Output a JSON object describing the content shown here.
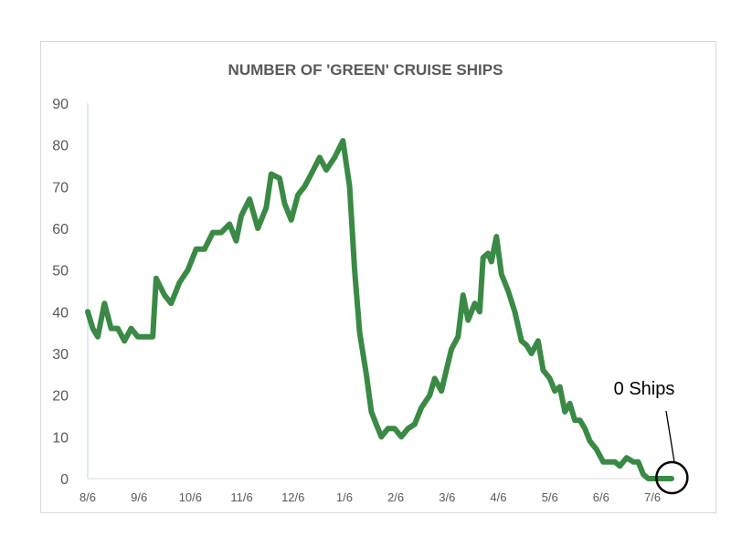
{
  "chart_data": {
    "type": "line",
    "title": "NUMBER OF 'GREEN' CRUISE SHIPS",
    "xlabel": "",
    "ylabel": "",
    "ylim": [
      0,
      90
    ],
    "y_ticks": [
      "0",
      "10",
      "20",
      "30",
      "40",
      "50",
      "60",
      "70",
      "80",
      "90"
    ],
    "x_tick_labels": [
      "8/6",
      "9/6",
      "10/6",
      "11/6",
      "12/6",
      "1/6",
      "2/6",
      "3/6",
      "4/6",
      "5/6",
      "6/6",
      "7/6"
    ],
    "grid": false,
    "legend": "none",
    "series": [
      {
        "color": "#3a8a45",
        "points": [
          [
            0,
            40
          ],
          [
            0.3,
            36
          ],
          [
            0.6,
            34
          ],
          [
            1,
            42
          ],
          [
            1.4,
            36
          ],
          [
            1.8,
            36
          ],
          [
            2.2,
            33
          ],
          [
            2.6,
            36
          ],
          [
            3,
            34
          ],
          [
            3.5,
            34
          ],
          [
            3.9,
            34
          ],
          [
            4.1,
            48
          ],
          [
            4.6,
            44
          ],
          [
            5,
            42
          ],
          [
            5.5,
            47
          ],
          [
            6,
            50
          ],
          [
            6.5,
            55
          ],
          [
            7,
            55
          ],
          [
            7.5,
            59
          ],
          [
            8,
            59
          ],
          [
            8.5,
            61
          ],
          [
            8.9,
            57
          ],
          [
            9.2,
            63
          ],
          [
            9.7,
            67
          ],
          [
            10.2,
            60
          ],
          [
            10.7,
            65
          ],
          [
            11,
            73
          ],
          [
            11.5,
            72
          ],
          [
            11.8,
            66
          ],
          [
            12.2,
            62
          ],
          [
            12.6,
            68
          ],
          [
            13,
            70
          ],
          [
            13.4,
            73
          ],
          [
            13.9,
            77
          ],
          [
            14.3,
            74
          ],
          [
            14.8,
            77
          ],
          [
            15.3,
            81
          ],
          [
            15.7,
            70
          ],
          [
            16,
            50
          ],
          [
            16.3,
            35
          ],
          [
            16.7,
            25
          ],
          [
            17,
            16
          ],
          [
            17.3,
            13
          ],
          [
            17.6,
            10
          ],
          [
            18,
            12
          ],
          [
            18.4,
            12
          ],
          [
            18.8,
            10
          ],
          [
            19.2,
            12
          ],
          [
            19.6,
            13
          ],
          [
            20,
            17
          ],
          [
            20.5,
            20
          ],
          [
            20.8,
            24
          ],
          [
            21.2,
            21
          ],
          [
            21.5,
            26
          ],
          [
            21.8,
            31
          ],
          [
            22.2,
            34
          ],
          [
            22.5,
            44
          ],
          [
            22.8,
            38
          ],
          [
            23.2,
            42
          ],
          [
            23.5,
            40
          ],
          [
            23.7,
            53
          ],
          [
            24,
            54
          ],
          [
            24.2,
            52
          ],
          [
            24.5,
            58
          ],
          [
            24.8,
            49
          ],
          [
            25.2,
            45
          ],
          [
            25.6,
            40
          ],
          [
            26,
            33
          ],
          [
            26.3,
            32
          ],
          [
            26.6,
            30
          ],
          [
            27,
            33
          ],
          [
            27.3,
            26
          ],
          [
            27.7,
            24
          ],
          [
            28,
            21
          ],
          [
            28.3,
            22
          ],
          [
            28.6,
            16
          ],
          [
            28.9,
            18
          ],
          [
            29.2,
            14
          ],
          [
            29.5,
            14
          ],
          [
            29.8,
            12
          ],
          [
            30.1,
            9
          ],
          [
            30.5,
            7
          ],
          [
            30.9,
            4
          ],
          [
            31.3,
            4
          ],
          [
            31.6,
            4
          ],
          [
            31.9,
            3
          ],
          [
            32.3,
            5
          ],
          [
            32.7,
            4
          ],
          [
            33,
            4
          ],
          [
            33.3,
            1
          ],
          [
            33.6,
            0
          ],
          [
            34.5,
            0
          ],
          [
            35,
            0
          ]
        ]
      }
    ],
    "annotations": [
      {
        "text": "0 Ships",
        "target": [
          34.8,
          0
        ]
      }
    ]
  }
}
